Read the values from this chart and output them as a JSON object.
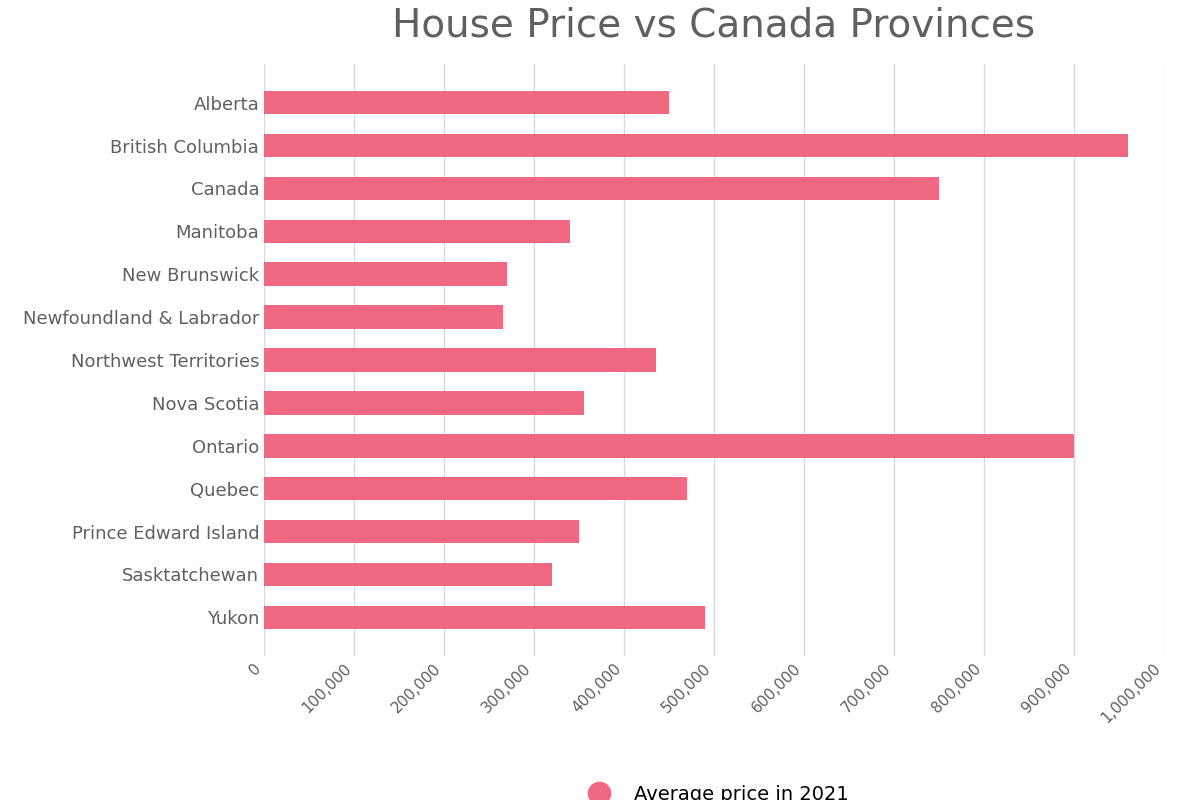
{
  "title": "House Price vs Canada Provinces",
  "title_fontsize": 28,
  "provinces": [
    "Alberta",
    "British Columbia",
    "Canada",
    "Manitoba",
    "New Brunswick",
    "Newfoundland & Labrador",
    "Northwest Territories",
    "Nova Scotia",
    "Ontario",
    "Quebec",
    "Prince Edward Island",
    "Sasktatchewan",
    "Yukon"
  ],
  "values": [
    450000,
    960000,
    750000,
    340000,
    270000,
    265000,
    435000,
    355000,
    900000,
    470000,
    350000,
    320000,
    490000
  ],
  "bar_color": "#f06882",
  "background_color": "#ffffff",
  "xlim": [
    0,
    1000000
  ],
  "xtick_step": 100000,
  "legend_label": "Average price in 2021",
  "legend_marker_size": 18,
  "grid_color": "#d8d8d8",
  "label_color": "#606060",
  "bar_height": 0.55
}
